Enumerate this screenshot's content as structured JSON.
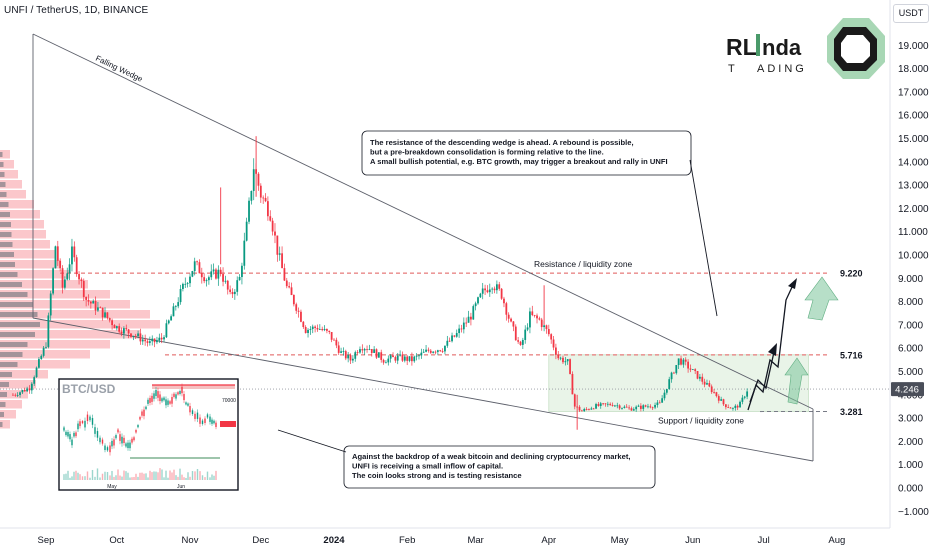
{
  "header": {
    "symbol": "UNFI / TetherUS, 1D, BINANCE",
    "currency_button": "USDT"
  },
  "logo": {
    "name_part1": "RL",
    "name_part2": "nda",
    "name_part3": "T",
    "name_part4": "ADING"
  },
  "chart_data": {
    "type": "candlestick",
    "yscale": "log",
    "ylim": [
      -1.0,
      20.6
    ],
    "y_ticks": [
      "19.000",
      "18.000",
      "17.000",
      "16.000",
      "15.000",
      "14.000",
      "13.000",
      "12.000",
      "11.000",
      "10.000",
      "9.000",
      "8.000",
      "7.000",
      "6.000",
      "5.000",
      "4.000",
      "3.000",
      "2.000",
      "1.000",
      "0.000",
      "−1.000"
    ],
    "y_tick_values": [
      19,
      18,
      17,
      16,
      15,
      14,
      13,
      12,
      11,
      10,
      9,
      8,
      7,
      6,
      5,
      4,
      3,
      2,
      1,
      0,
      -1
    ],
    "x_ticks": [
      "Sep",
      "Oct",
      "Nov",
      "Dec",
      "2024",
      "Feb",
      "Mar",
      "Apr",
      "May",
      "Jun",
      "Jul",
      "Aug"
    ],
    "x_tick_dates": [
      "2023-09-01",
      "2023-10-01",
      "2023-11-01",
      "2023-12-01",
      "2024-01-01",
      "2024-02-01",
      "2024-03-01",
      "2024-04-01",
      "2024-05-01",
      "2024-06-01",
      "2024-07-01",
      "2024-08-01"
    ],
    "current_price": "4.246",
    "current_price_value": 4.246,
    "levels": [
      {
        "label": "9.220",
        "value": 9.22,
        "color": "#e05a5a"
      },
      {
        "label": "5.716",
        "value": 5.716,
        "color": "#e05a5a"
      },
      {
        "label": "3.281",
        "value": 3.281,
        "color": "#787b86"
      }
    ],
    "price_path": [
      [
        "2023-08-18",
        4.0
      ],
      [
        "2023-08-25",
        4.3
      ],
      [
        "2023-09-01",
        6.2
      ],
      [
        "2023-09-05",
        10.4
      ],
      [
        "2023-09-08",
        8.6
      ],
      [
        "2023-09-12",
        10.1
      ],
      [
        "2023-09-18",
        8.1
      ],
      [
        "2023-09-24",
        7.6
      ],
      [
        "2023-10-01",
        6.9
      ],
      [
        "2023-10-08",
        6.6
      ],
      [
        "2023-10-15",
        6.2
      ],
      [
        "2023-10-20",
        6.4
      ],
      [
        "2023-10-25",
        7.6
      ],
      [
        "2023-10-29",
        8.6
      ],
      [
        "2023-11-03",
        9.6
      ],
      [
        "2023-11-08",
        9.0
      ],
      [
        "2023-11-14",
        9.3
      ],
      [
        "2023-11-18",
        8.2
      ],
      [
        "2023-11-22",
        9.0
      ],
      [
        "2023-11-25",
        11.2
      ],
      [
        "2023-11-28",
        13.8
      ],
      [
        "2023-12-01",
        12.6
      ],
      [
        "2023-12-05",
        11.8
      ],
      [
        "2023-12-08",
        10.2
      ],
      [
        "2023-12-12",
        8.6
      ],
      [
        "2023-12-16",
        7.8
      ],
      [
        "2023-12-20",
        6.8
      ],
      [
        "2023-12-25",
        6.9
      ],
      [
        "2023-12-30",
        6.6
      ],
      [
        "2024-01-04",
        5.8
      ],
      [
        "2024-01-08",
        5.5
      ],
      [
        "2024-01-12",
        6.1
      ],
      [
        "2024-01-16",
        6.0
      ],
      [
        "2024-01-22",
        5.5
      ],
      [
        "2024-01-28",
        5.6
      ],
      [
        "2024-02-03",
        5.5
      ],
      [
        "2024-02-10",
        5.9
      ],
      [
        "2024-02-16",
        6.0
      ],
      [
        "2024-02-22",
        6.6
      ],
      [
        "2024-02-28",
        7.4
      ],
      [
        "2024-03-04",
        8.4
      ],
      [
        "2024-03-08",
        8.8
      ],
      [
        "2024-03-12",
        8.3
      ],
      [
        "2024-03-16",
        7.0
      ],
      [
        "2024-03-20",
        6.0
      ],
      [
        "2024-03-24",
        7.4
      ],
      [
        "2024-03-28",
        7.2
      ],
      [
        "2024-04-01",
        6.6
      ],
      [
        "2024-04-05",
        5.6
      ],
      [
        "2024-04-09",
        5.4
      ],
      [
        "2024-04-12",
        3.5
      ],
      [
        "2024-04-15",
        3.3
      ],
      [
        "2024-04-20",
        3.5
      ],
      [
        "2024-04-28",
        3.6
      ],
      [
        "2024-05-05",
        3.4
      ],
      [
        "2024-05-12",
        3.5
      ],
      [
        "2024-05-18",
        3.6
      ],
      [
        "2024-05-22",
        4.6
      ],
      [
        "2024-05-26",
        5.5
      ],
      [
        "2024-05-29",
        5.3
      ],
      [
        "2024-06-02",
        4.9
      ],
      [
        "2024-06-06",
        4.5
      ],
      [
        "2024-06-10",
        4.1
      ],
      [
        "2024-06-14",
        3.6
      ],
      [
        "2024-06-18",
        3.4
      ],
      [
        "2024-06-21",
        3.6
      ],
      [
        "2024-06-24",
        4.2
      ]
    ],
    "annotations": {
      "pattern_label": "Falling Wedge",
      "resistance_label": "Resistance / liquidity zone",
      "support_label": "Support / liquidity zone",
      "note_top": [
        "The resistance of the descending wedge is ahead. A rebound is possible,",
        "but a pre-breakdown consolidation is forming relative to the line.",
        "A small bullish potential, e.g. BTC growth, may trigger a breakout and rally in UNFI"
      ],
      "note_bottom": [
        "Against the backdrop of a weak bitcoin and declining cryptocurrency market,",
        "UNFI is receiving a small inflow of capital.",
        "The coin looks strong and is testing resistance"
      ]
    },
    "inset": {
      "title": "BTC/USD",
      "y_top_label": "70000",
      "x_labels": [
        "May",
        "Jun"
      ]
    },
    "colors": {
      "up": "#089981",
      "down": "#f23645",
      "projection": "#7cc49b",
      "volume_profile": "#f23645"
    }
  }
}
